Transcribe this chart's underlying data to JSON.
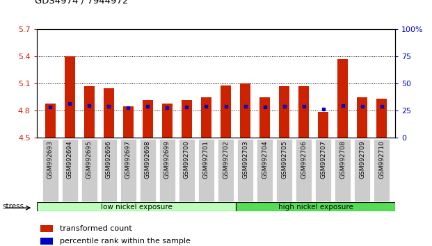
{
  "title": "GDS4974 / 7944972",
  "samples": [
    "GSM992693",
    "GSM992694",
    "GSM992695",
    "GSM992696",
    "GSM992697",
    "GSM992698",
    "GSM992699",
    "GSM992700",
    "GSM992701",
    "GSM992702",
    "GSM992703",
    "GSM992704",
    "GSM992705",
    "GSM992706",
    "GSM992707",
    "GSM992708",
    "GSM992709",
    "GSM992710"
  ],
  "bar_values": [
    4.88,
    5.4,
    5.07,
    5.05,
    4.85,
    4.92,
    4.88,
    4.92,
    4.95,
    5.08,
    5.1,
    4.95,
    5.07,
    5.07,
    4.79,
    5.37,
    4.95,
    4.93
  ],
  "blue_dot_values": [
    4.84,
    4.88,
    4.86,
    4.85,
    4.83,
    4.85,
    4.83,
    4.84,
    4.85,
    4.85,
    4.85,
    4.84,
    4.85,
    4.85,
    4.82,
    4.86,
    4.85,
    4.85
  ],
  "ymin": 4.5,
  "ymax": 5.7,
  "yticks_left": [
    4.5,
    4.8,
    5.1,
    5.4,
    5.7
  ],
  "right_yticks_pct": [
    0,
    25,
    50,
    75,
    100
  ],
  "bar_color": "#cc2200",
  "dot_color": "#0000cc",
  "group1_label": "low nickel exposure",
  "group2_label": "high nickel exposure",
  "group1_count": 10,
  "group1_color": "#bbffbb",
  "group2_color": "#55dd55",
  "stress_label": "stress",
  "legend_bar": "transformed count",
  "legend_dot": "percentile rank within the sample",
  "left_tick_color": "#cc2200",
  "right_tick_color": "#0000cc",
  "grid_dotted_values": [
    4.8,
    5.1,
    5.4
  ],
  "bar_width": 0.55,
  "baseline": 4.5,
  "xtick_bg": "#cccccc"
}
